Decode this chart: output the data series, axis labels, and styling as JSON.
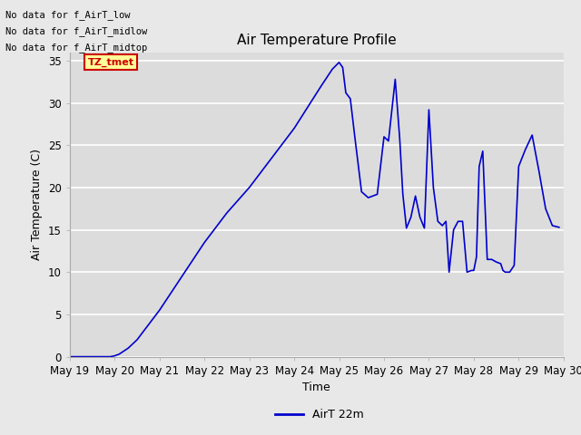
{
  "title": "Air Temperature Profile",
  "xlabel": "Time",
  "ylabel": "Air Temperature (C)",
  "legend_label": "AirT 22m",
  "legend_line_color": "#0000cc",
  "no_data_texts": [
    "No data for f_AirT_low",
    "No data for f_AirT_midlow",
    "No data for f_AirT_midtop"
  ],
  "tz_tmet_label": "TZ_tmet",
  "tz_tmet_box_color": "#ffff99",
  "tz_tmet_text_color": "#cc0000",
  "ylim": [
    0,
    36
  ],
  "yticks": [
    0,
    5,
    10,
    15,
    20,
    25,
    30,
    35
  ],
  "bg_color": "#e8e8e8",
  "plot_bg_color": "#dcdcdc",
  "line_color": "#0000cc",
  "x_values": [
    19.0,
    19.9,
    20.0,
    20.1,
    20.3,
    20.5,
    21.0,
    21.5,
    22.0,
    22.5,
    23.0,
    23.5,
    24.0,
    24.3,
    24.6,
    24.85,
    25.0,
    25.08,
    25.15,
    25.25,
    25.35,
    25.5,
    25.65,
    25.85,
    26.0,
    26.1,
    26.25,
    26.35,
    26.42,
    26.5,
    26.6,
    26.7,
    26.8,
    26.9,
    27.0,
    27.1,
    27.2,
    27.3,
    27.38,
    27.45,
    27.55,
    27.65,
    27.75,
    27.85,
    27.95,
    28.0,
    28.06,
    28.12,
    28.2,
    28.3,
    28.4,
    28.5,
    28.6,
    28.65,
    28.7,
    28.8,
    28.9,
    29.0,
    29.15,
    29.3,
    29.45,
    29.6,
    29.75,
    29.9
  ],
  "y_values": [
    0.0,
    0.0,
    0.1,
    0.3,
    1.0,
    2.0,
    5.5,
    9.5,
    13.5,
    17.0,
    20.0,
    23.5,
    27.0,
    29.5,
    32.0,
    34.0,
    34.8,
    34.2,
    31.2,
    30.5,
    26.0,
    19.5,
    18.8,
    19.2,
    26.0,
    25.5,
    32.8,
    25.8,
    19.2,
    15.2,
    16.5,
    19.0,
    16.5,
    15.2,
    29.2,
    20.0,
    16.0,
    15.5,
    16.0,
    10.0,
    15.0,
    16.0,
    16.0,
    10.0,
    10.2,
    10.2,
    11.8,
    22.5,
    24.3,
    11.5,
    11.5,
    11.2,
    11.0,
    10.2,
    10.0,
    10.0,
    10.8,
    22.5,
    24.5,
    26.2,
    22.0,
    17.5,
    15.5,
    15.3
  ],
  "xtick_labels": [
    "May 19",
    "May 20",
    "May 21",
    "May 22",
    "May 23",
    "May 24",
    "May 25",
    "May 26",
    "May 27",
    "May 28",
    "May 29",
    "May 30"
  ],
  "xtick_positions": [
    19,
    20,
    21,
    22,
    23,
    24,
    25,
    26,
    27,
    28,
    29,
    30
  ]
}
